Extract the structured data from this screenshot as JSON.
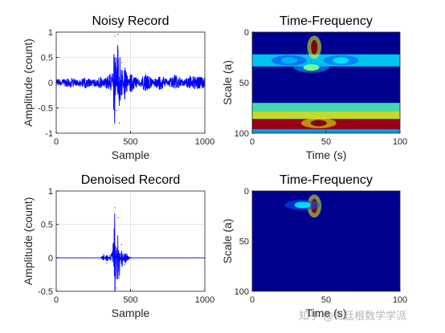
{
  "watermark": "知乎 @哥廷根数学学派",
  "colors": {
    "signal": "#0000ff",
    "axes": "#262626",
    "grid": "#dfdfdf",
    "map_background": "#00008f"
  },
  "chart_data": [
    {
      "type": "line",
      "title": "Noisy Record",
      "xlabel": "Sample",
      "ylabel": "Amplitude (count)",
      "xlim": [
        0,
        1000
      ],
      "ylim": [
        -1,
        1
      ],
      "xticks": [
        "0",
        "500",
        "1000"
      ],
      "yticks": [
        "-1",
        "-0.5",
        "0",
        "0.5",
        "1"
      ],
      "grid": true,
      "series": [
        {
          "x": [
            0,
            100,
            200,
            300,
            340,
            380,
            395,
            405,
            415,
            425,
            440,
            460,
            500,
            600,
            700,
            800,
            900,
            1000
          ],
          "y": [
            0.02,
            -0.04,
            0.05,
            -0.06,
            0.08,
            0.15,
            0.92,
            -0.55,
            0.95,
            -0.8,
            0.4,
            -0.3,
            0.15,
            -0.12,
            0.1,
            -0.1,
            0.08,
            0.05
          ]
        }
      ]
    },
    {
      "type": "heatmap",
      "title": "Time-Frequency",
      "xlabel": "Time (s)",
      "ylabel": "Scale (a)",
      "xlim": [
        0,
        100
      ],
      "ylim": [
        100,
        0
      ],
      "xticks": [
        "0",
        "50",
        "100"
      ],
      "yticks": [
        "0",
        "50",
        "100"
      ],
      "bands": [
        {
          "scale": [
            22,
            34
          ],
          "time": [
            0,
            100
          ],
          "intensity": 0.35
        },
        {
          "scale": [
            70,
            78
          ],
          "time": [
            0,
            100
          ],
          "intensity": 0.45
        },
        {
          "scale": [
            78,
            86
          ],
          "time": [
            0,
            100
          ],
          "intensity": 0.6
        },
        {
          "scale": [
            86,
            96
          ],
          "time": [
            0,
            100
          ],
          "intensity": 0.95
        },
        {
          "scale": [
            96,
            100
          ],
          "time": [
            0,
            100
          ],
          "intensity": 0.3
        }
      ],
      "hotspots": [
        {
          "time": 42,
          "scale": 15,
          "intensity": 1.0
        },
        {
          "time": 40,
          "scale": 35,
          "intensity": 0.5
        },
        {
          "time": 60,
          "scale": 28,
          "intensity": 0.35
        },
        {
          "time": 25,
          "scale": 28,
          "intensity": 0.3
        },
        {
          "time": 45,
          "scale": 90,
          "intensity": 1.0
        }
      ]
    },
    {
      "type": "line",
      "title": "Denoised Record",
      "xlabel": "Sample",
      "ylabel": "Amplitude (count)",
      "xlim": [
        0,
        1000
      ],
      "ylim": [
        -0.5,
        1
      ],
      "xticks": [
        "0",
        "500",
        "1000"
      ],
      "yticks": [
        "-0.5",
        "0",
        "0.5",
        "1"
      ],
      "grid": true,
      "series": [
        {
          "x": [
            0,
            300,
            320,
            340,
            360,
            380,
            395,
            405,
            415,
            425,
            440,
            460,
            500,
            1000
          ],
          "y": [
            0,
            0,
            0.05,
            -0.08,
            0.03,
            0.1,
            0.75,
            -0.45,
            0.6,
            -0.3,
            0.2,
            -0.1,
            0,
            0
          ]
        }
      ]
    },
    {
      "type": "heatmap",
      "title": "Time-Frequency",
      "xlabel": "Time (s)",
      "ylabel": "Scale (a)",
      "xlim": [
        0,
        100
      ],
      "ylim": [
        100,
        0
      ],
      "xticks": [
        "0",
        "50",
        "100"
      ],
      "yticks": [
        "0",
        "50",
        "100"
      ],
      "bands": [],
      "hotspots": [
        {
          "time": 42,
          "scale": 15,
          "intensity": 1.0
        },
        {
          "time": 34,
          "scale": 14,
          "intensity": 0.35
        }
      ]
    }
  ]
}
